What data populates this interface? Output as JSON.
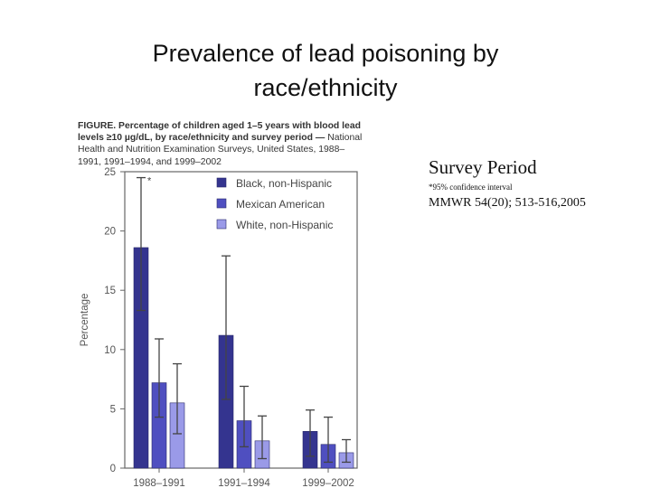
{
  "slide": {
    "title_line1": "Prevalence of lead poisoning by",
    "title_line2": "race/ethnicity"
  },
  "figure": {
    "caption_bold": "FIGURE. Percentage of children aged 1–5 years with blood lead levels ≥10 µg/dL, by race/ethnicity and survey period —",
    "caption_rest": "National Health and Nutrition Examination Surveys, United States, 1988–1991, 1991–1994, and 1999–2002",
    "asterisk": "*"
  },
  "side": {
    "xlabel_note": "Survey Period",
    "ci_note": "*95% confidence interval",
    "reference": "MMWR 54(20); 513-516,2005"
  },
  "colors": {
    "black_nonhispanic": "#34348f",
    "mexican_american": "#4f4fc0",
    "white_nonhispanic": "#9a9ae8",
    "axis": "#666666",
    "errorbar": "#444444"
  },
  "chart_data": {
    "type": "bar",
    "title": "Percentage of children aged 1–5 years with blood lead levels ≥10 µg/dL, by race/ethnicity and survey period",
    "xlabel": "Survey Period",
    "ylabel": "Percentage",
    "ylim": [
      0,
      25
    ],
    "yticks": [
      0,
      5,
      10,
      15,
      20,
      25
    ],
    "categories": [
      "1988–1991",
      "1991–1994",
      "1999–2002"
    ],
    "legend_position": "upper right",
    "grid": false,
    "series": [
      {
        "name": "Black, non-Hispanic",
        "values": [
          18.6,
          11.2,
          3.1
        ],
        "ci_low": [
          13.3,
          5.8,
          1.0
        ],
        "ci_high": [
          24.5,
          17.9,
          4.9
        ]
      },
      {
        "name": "Mexican American",
        "values": [
          7.2,
          4.0,
          2.0
        ],
        "ci_low": [
          4.3,
          1.8,
          0.5
        ],
        "ci_high": [
          10.9,
          6.9,
          4.3
        ]
      },
      {
        "name": "White, non-Hispanic",
        "values": [
          5.5,
          2.3,
          1.3
        ],
        "ci_low": [
          2.9,
          0.8,
          0.5
        ],
        "ci_high": [
          8.8,
          4.4,
          2.4
        ]
      }
    ],
    "annotations": [
      "*"
    ]
  }
}
